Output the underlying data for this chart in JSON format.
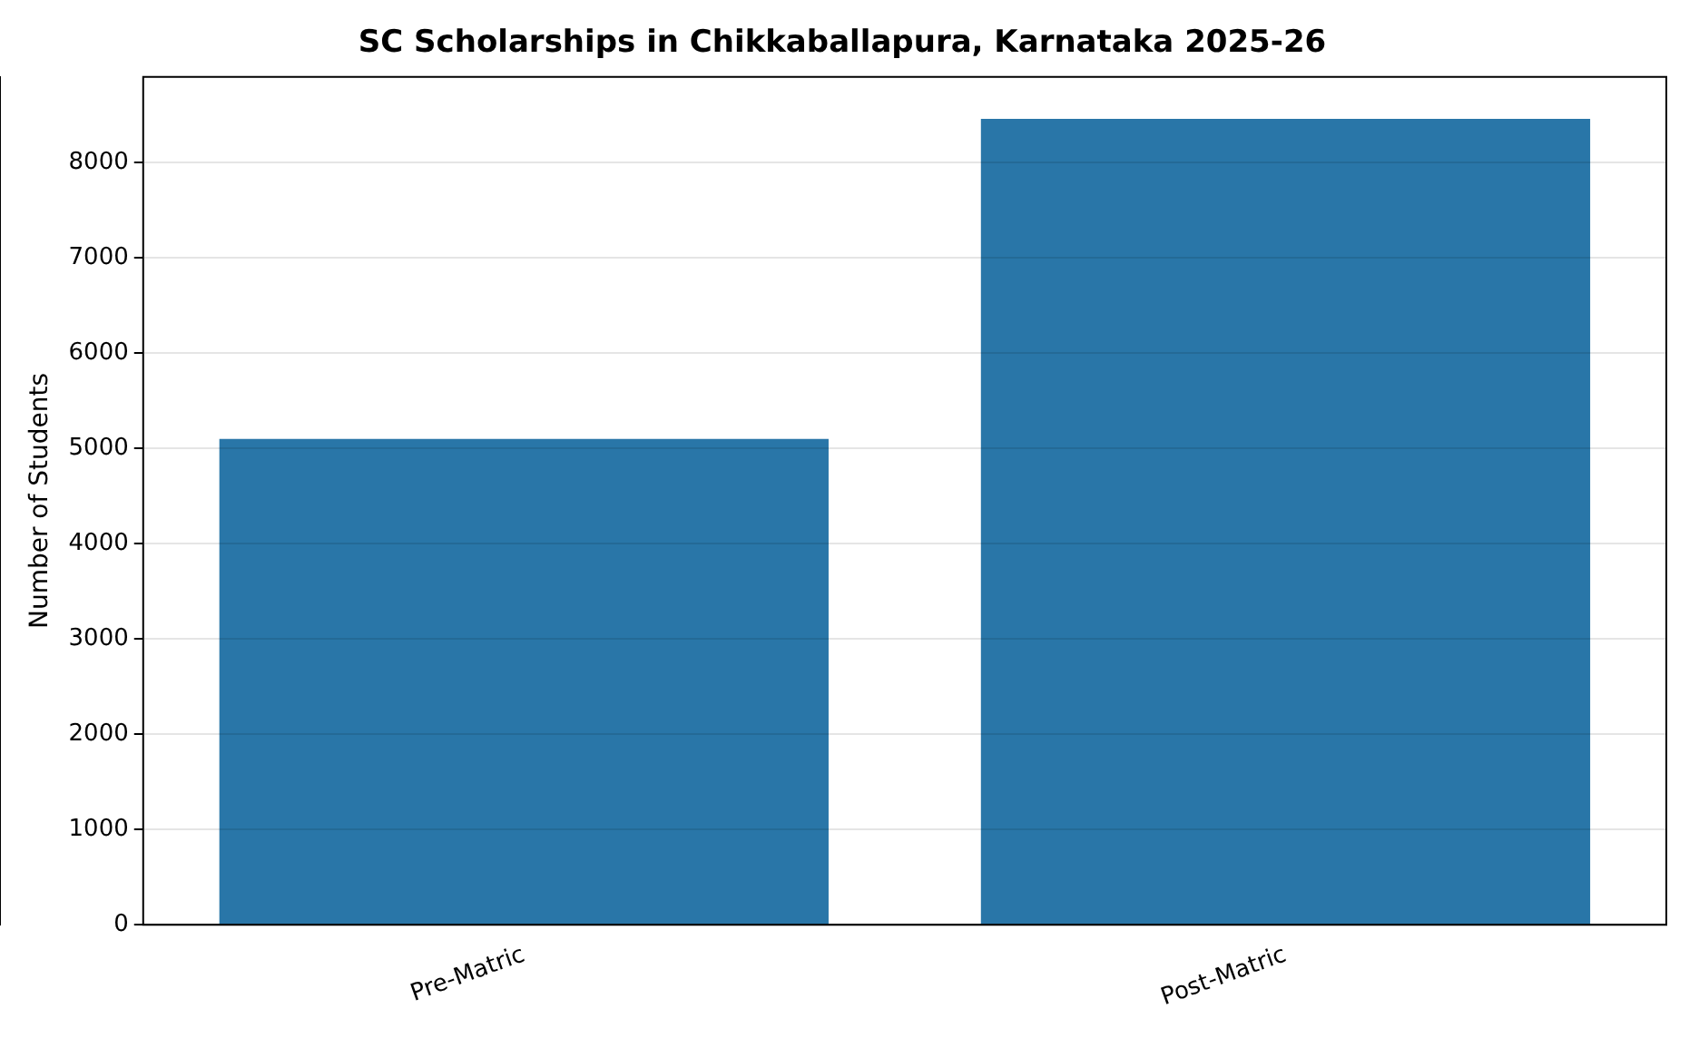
{
  "chart_data": {
    "type": "bar",
    "title": "SC Scholarships in Chikkaballapura, Karnataka 2025-26",
    "ylabel": "Number of Students",
    "categories": [
      "Pre-Matric",
      "Post-Matric"
    ],
    "values": [
      5100,
      8460
    ],
    "color": "#2976a8",
    "ylim": [
      0,
      8900
    ],
    "yticks": [
      0,
      1000,
      2000,
      3000,
      4000,
      5000,
      6000,
      7000,
      8000
    ],
    "grid": "y",
    "legend": false
  }
}
